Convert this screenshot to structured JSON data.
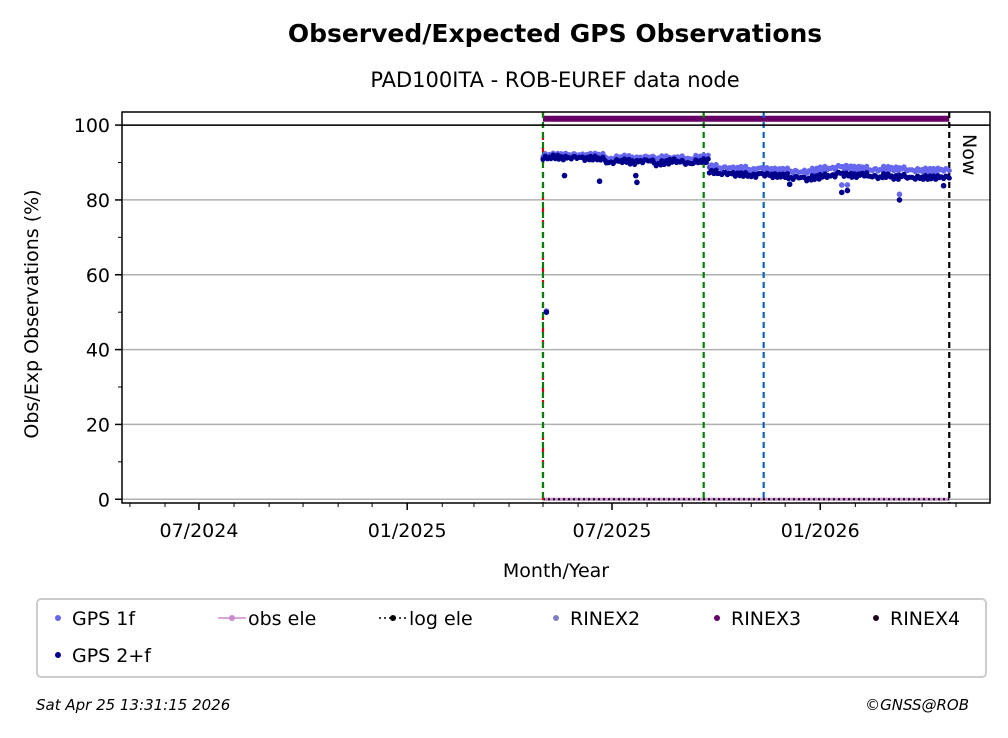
{
  "chart_data": {
    "type": "scatter",
    "title": "Observed/Expected GPS Observations",
    "subtitle": "PAD100ITA - ROB-EUREF data node",
    "xlabel": "Month/Year",
    "ylabel": "Obs/Exp Observations (%)",
    "xlim": [
      "2024-04-24",
      "2026-05-31"
    ],
    "ylim": [
      -1,
      103.5
    ],
    "yticks": [
      0,
      20,
      40,
      60,
      80,
      100
    ],
    "xticks": [
      {
        "date": "2024-07-01",
        "label": "07/2024"
      },
      {
        "date": "2025-01-01",
        "label": "01/2025"
      },
      {
        "date": "2025-07-01",
        "label": "07/2025"
      },
      {
        "date": "2026-01-01",
        "label": "01/2026"
      }
    ],
    "grid": "y",
    "now_label": "Now",
    "series_start": "2025-05-01",
    "series_step_days": 7,
    "series": [
      {
        "name": "GPS 1f",
        "color": "#6666ee",
        "values": [
          92,
          92,
          92,
          92,
          92,
          91.8,
          92,
          92,
          91,
          91.5,
          91.5,
          91,
          91.2,
          91.5,
          91,
          91.3,
          91,
          91.5,
          91,
          91.5,
          91.5,
          89,
          88.5,
          88.5,
          88.3,
          88.5,
          88,
          88.5,
          88.3,
          88,
          88,
          87.5,
          87.5,
          87.5,
          88,
          88.5,
          88.5,
          89,
          88.8,
          88.5,
          88.5,
          88,
          88,
          88.5,
          88.3,
          88.5,
          88,
          88,
          88,
          88,
          88,
          88
        ],
        "outliers": [
          [
            "2025-05-04",
            50.3
          ],
          [
            "2026-01-20",
            84
          ],
          [
            "2026-01-25",
            84
          ],
          [
            "2026-03-12",
            81.5
          ]
        ]
      },
      {
        "name": "GPS 2+f",
        "color": "#00008b",
        "values": [
          91.3,
          91.5,
          91.2,
          91.2,
          91.3,
          91,
          91.2,
          91,
          90,
          90.5,
          90.5,
          90,
          90.3,
          90.5,
          89.5,
          90,
          90.5,
          90.3,
          89.8,
          90.3,
          90.5,
          87.5,
          87,
          87,
          86.8,
          86.8,
          86.5,
          87,
          86.8,
          86.5,
          86.5,
          85.8,
          86,
          85.5,
          86,
          86.5,
          86.5,
          87.2,
          86.8,
          86.5,
          86.8,
          86.3,
          86,
          86.5,
          86,
          86.5,
          86,
          86,
          86,
          86,
          86,
          86
        ],
        "outliers": [
          [
            "2025-05-04",
            50
          ],
          [
            "2025-05-20",
            86.5
          ],
          [
            "2025-06-20",
            85
          ],
          [
            "2025-07-22",
            86.5
          ],
          [
            "2025-07-23",
            84.7
          ],
          [
            "2025-12-05",
            84.2
          ],
          [
            "2026-01-20",
            82
          ],
          [
            "2026-01-25",
            82.5
          ],
          [
            "2026-03-12",
            80
          ],
          [
            "2026-04-20",
            83.8
          ]
        ]
      },
      {
        "name": "RINEX3",
        "color": "#660066",
        "constant": 101.7,
        "from": "2025-05-01",
        "to": "2026-04-25"
      },
      {
        "name": "obs ele",
        "color": "#cc88cc",
        "constant": 0,
        "from": "2025-05-01",
        "to": "2026-04-25"
      },
      {
        "name": "log ele",
        "color": "#000000",
        "constant": 0,
        "from": "2025-05-01",
        "to": "2026-04-25"
      }
    ],
    "vlines": [
      {
        "date": "2025-05-01",
        "color": "#dd0000",
        "style": "dashed"
      },
      {
        "date": "2025-05-01",
        "color": "#008000",
        "style": "dashed"
      },
      {
        "date": "2025-09-20",
        "color": "#008000",
        "style": "dashed"
      },
      {
        "date": "2025-11-12",
        "color": "#1060c0",
        "style": "dashed"
      },
      {
        "date": "2026-04-25",
        "color": "#000000",
        "style": "dashed"
      }
    ],
    "legend": {
      "placement": "bottom",
      "entries": [
        {
          "label": "GPS 1f",
          "color": "#6666ee",
          "marker": "dot"
        },
        {
          "label": "obs ele",
          "color": "#cc88cc",
          "marker": "line-dot"
        },
        {
          "label": "log ele",
          "color": "#000000",
          "marker": "dotted-line-dot"
        },
        {
          "label": "RINEX2",
          "color": "#8080c0",
          "marker": "dot"
        },
        {
          "label": "RINEX3",
          "color": "#660066",
          "marker": "dot"
        },
        {
          "label": "RINEX4",
          "color": "#200020",
          "marker": "dot"
        },
        {
          "label": "GPS 2+f",
          "color": "#00008b",
          "marker": "dot"
        }
      ]
    }
  },
  "footer": {
    "timestamp": "Sat Apr 25 13:31:15 2026",
    "credit": "©GNSS@ROB"
  }
}
